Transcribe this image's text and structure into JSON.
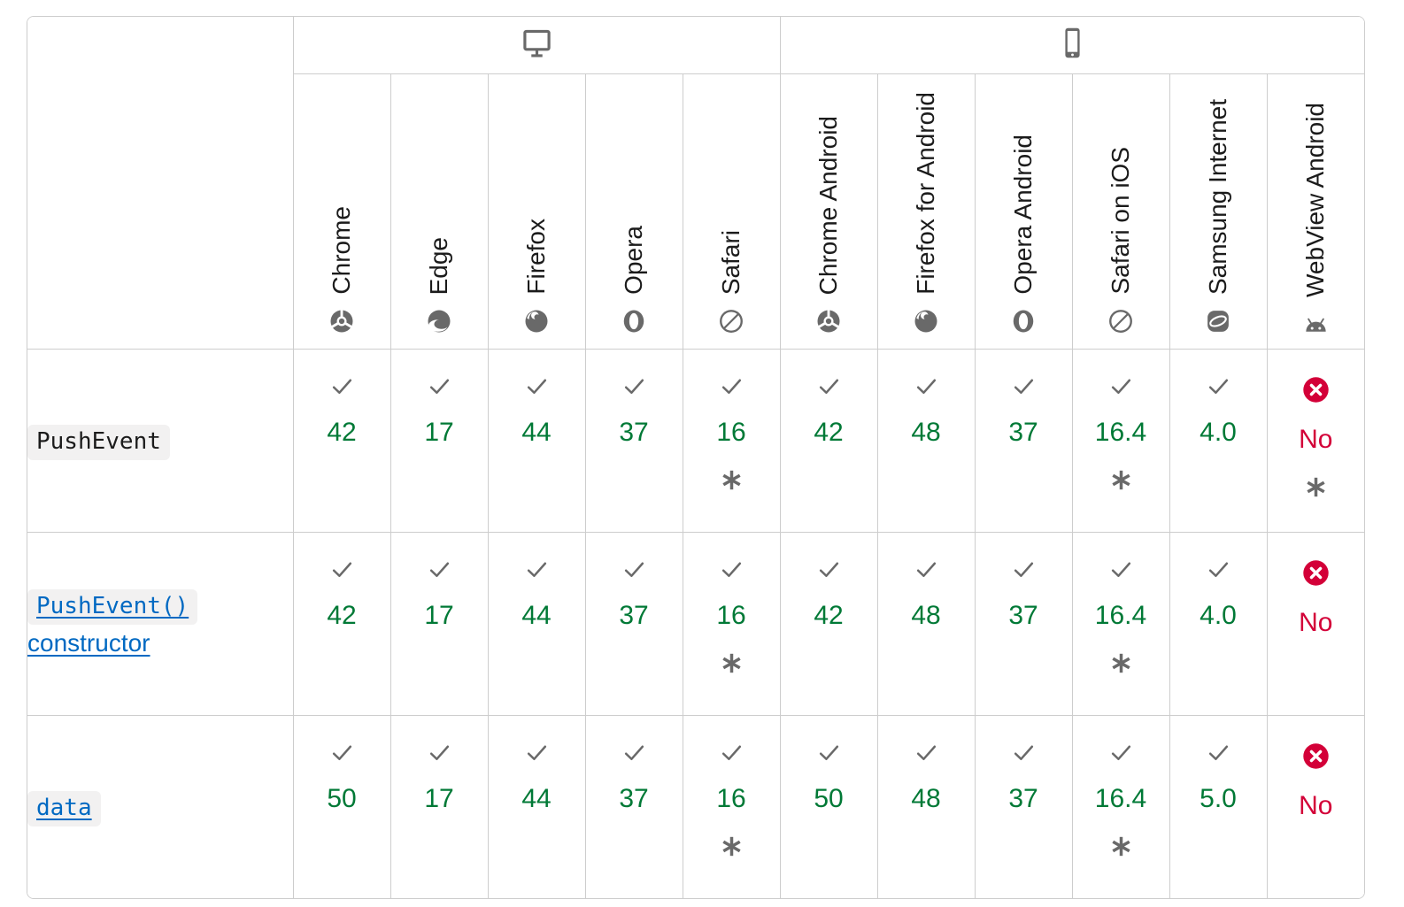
{
  "colors": {
    "supported_green": "#007936",
    "unsupported_red": "#d30038",
    "icon_gray": "#696969",
    "border_gray": "#cdcdcd",
    "link_blue": "#0069c2",
    "code_background": "#f2f1f1",
    "text": "#1b1b1b"
  },
  "table": {
    "platforms": [
      {
        "id": "desktop",
        "icon": "desktop",
        "span": 5
      },
      {
        "id": "mobile",
        "icon": "mobile",
        "span": 6
      }
    ],
    "browsers": [
      {
        "name": "Chrome",
        "icon": "chrome"
      },
      {
        "name": "Edge",
        "icon": "edge"
      },
      {
        "name": "Firefox",
        "icon": "firefox"
      },
      {
        "name": "Opera",
        "icon": "opera"
      },
      {
        "name": "Safari",
        "icon": "safari"
      },
      {
        "name": "Chrome Android",
        "icon": "chrome"
      },
      {
        "name": "Firefox for Android",
        "icon": "firefox"
      },
      {
        "name": "Opera Android",
        "icon": "opera"
      },
      {
        "name": "Safari on iOS",
        "icon": "safari"
      },
      {
        "name": "Samsung Internet",
        "icon": "samsung"
      },
      {
        "name": "WebView Android",
        "icon": "android"
      }
    ],
    "rows": [
      {
        "label": {
          "link": false,
          "parts": [
            {
              "type": "code",
              "text": "PushEvent"
            }
          ]
        },
        "cells": [
          {
            "support": "yes",
            "version": "42",
            "footnote": false
          },
          {
            "support": "yes",
            "version": "17",
            "footnote": false
          },
          {
            "support": "yes",
            "version": "44",
            "footnote": false
          },
          {
            "support": "yes",
            "version": "37",
            "footnote": false
          },
          {
            "support": "yes",
            "version": "16",
            "footnote": true
          },
          {
            "support": "yes",
            "version": "42",
            "footnote": false
          },
          {
            "support": "yes",
            "version": "48",
            "footnote": false
          },
          {
            "support": "yes",
            "version": "37",
            "footnote": false
          },
          {
            "support": "yes",
            "version": "16.4",
            "footnote": true
          },
          {
            "support": "yes",
            "version": "4.0",
            "footnote": false
          },
          {
            "support": "no",
            "version": "No",
            "footnote": true
          }
        ]
      },
      {
        "label": {
          "link": true,
          "parts": [
            {
              "type": "code",
              "text": "PushEvent()"
            },
            {
              "type": "text",
              "text": " constructor"
            }
          ]
        },
        "cells": [
          {
            "support": "yes",
            "version": "42",
            "footnote": false
          },
          {
            "support": "yes",
            "version": "17",
            "footnote": false
          },
          {
            "support": "yes",
            "version": "44",
            "footnote": false
          },
          {
            "support": "yes",
            "version": "37",
            "footnote": false
          },
          {
            "support": "yes",
            "version": "16",
            "footnote": true
          },
          {
            "support": "yes",
            "version": "42",
            "footnote": false
          },
          {
            "support": "yes",
            "version": "48",
            "footnote": false
          },
          {
            "support": "yes",
            "version": "37",
            "footnote": false
          },
          {
            "support": "yes",
            "version": "16.4",
            "footnote": true
          },
          {
            "support": "yes",
            "version": "4.0",
            "footnote": false
          },
          {
            "support": "no",
            "version": "No",
            "footnote": false
          }
        ]
      },
      {
        "label": {
          "link": true,
          "parts": [
            {
              "type": "code",
              "text": "data"
            }
          ]
        },
        "cells": [
          {
            "support": "yes",
            "version": "50",
            "footnote": false
          },
          {
            "support": "yes",
            "version": "17",
            "footnote": false
          },
          {
            "support": "yes",
            "version": "44",
            "footnote": false
          },
          {
            "support": "yes",
            "version": "37",
            "footnote": false
          },
          {
            "support": "yes",
            "version": "16",
            "footnote": true
          },
          {
            "support": "yes",
            "version": "50",
            "footnote": false
          },
          {
            "support": "yes",
            "version": "48",
            "footnote": false
          },
          {
            "support": "yes",
            "version": "37",
            "footnote": false
          },
          {
            "support": "yes",
            "version": "16.4",
            "footnote": true
          },
          {
            "support": "yes",
            "version": "5.0",
            "footnote": false
          },
          {
            "support": "no",
            "version": "No",
            "footnote": false
          }
        ]
      }
    ]
  }
}
